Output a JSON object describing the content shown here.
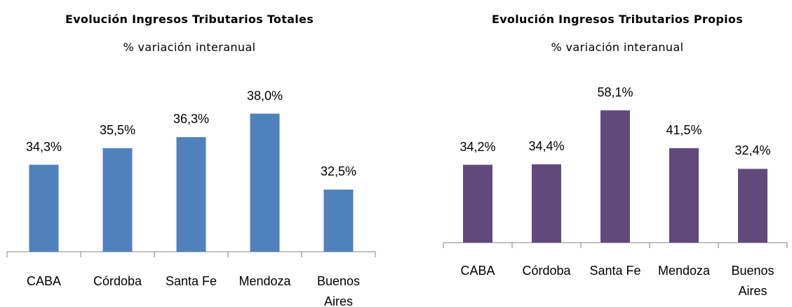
{
  "chart_data": [
    {
      "type": "bar",
      "title": "Evolución Ingresos Tributarios Totales",
      "subtitle": "% variación interanual",
      "categories": [
        "CABA",
        "Córdoba",
        "Santa Fe",
        "Mendoza",
        "Buenos Aires"
      ],
      "values": [
        34.3,
        35.5,
        36.3,
        38.0,
        32.5
      ],
      "value_labels": [
        "34,3%",
        "35,5%",
        "36,3%",
        "38,0%",
        "32,5%"
      ],
      "color": "#4f81bd",
      "ylim": [
        28,
        40
      ]
    },
    {
      "type": "bar",
      "title": "Evolución Ingresos Tributarios Propios",
      "subtitle": "% variación interanual",
      "categories": [
        "CABA",
        "Córdoba",
        "Santa Fe",
        "Mendoza",
        "Buenos Aires"
      ],
      "values": [
        34.2,
        34.4,
        58.1,
        41.5,
        32.4
      ],
      "value_labels": [
        "34,2%",
        "34,4%",
        "58,1%",
        "41,5%",
        "32,4%"
      ],
      "color": "#604a7b",
      "ylim": [
        0,
        70
      ]
    }
  ]
}
